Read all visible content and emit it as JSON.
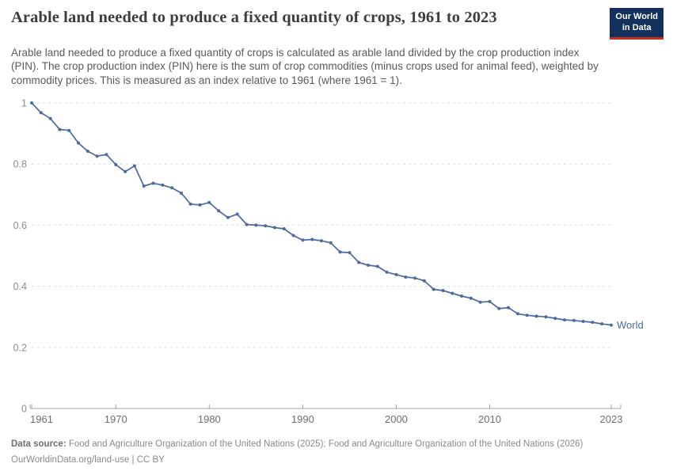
{
  "header": {
    "title": "Arable land needed to produce a fixed quantity of crops, 1961 to 2023",
    "subtitle": "Arable land needed to produce a fixed quantity of crops is calculated as arable land divided by the crop production index (PIN). The crop production index (PIN) here is the sum of crop commodities (minus crops used for animal feed), weighted by commodity prices. This is measured as an index relative to 1961 (where 1961 = 1).",
    "logo": {
      "line1": "Our World",
      "line2": "in Data",
      "bg_color": "#12315c",
      "accent_color": "#c5301f"
    }
  },
  "chart_data": {
    "type": "line",
    "title": "Arable land needed to produce a fixed quantity of crops, 1961 to 2023",
    "xlabel": "",
    "ylabel": "",
    "xlim": [
      1961,
      2023
    ],
    "ylim": [
      0,
      1
    ],
    "grid": "horizontal-dashed",
    "legend_position": "end-of-line-label",
    "line_color": "#4c6a9f",
    "tick_color": "#8c8c8c",
    "yticks": [
      0,
      0.2,
      0.4,
      0.6,
      0.8,
      1
    ],
    "ytick_labels": [
      "0",
      "0.2",
      "0.4",
      "0.6",
      "0.8",
      "1"
    ],
    "xticks": [
      1961,
      1970,
      1980,
      1990,
      2000,
      2010,
      2023
    ],
    "series": [
      {
        "name": "World",
        "x": [
          1961,
          1962,
          1963,
          1964,
          1965,
          1966,
          1967,
          1968,
          1969,
          1970,
          1971,
          1972,
          1973,
          1974,
          1975,
          1976,
          1977,
          1978,
          1979,
          1980,
          1981,
          1982,
          1983,
          1984,
          1985,
          1986,
          1987,
          1988,
          1989,
          1990,
          1991,
          1992,
          1993,
          1994,
          1995,
          1996,
          1997,
          1998,
          1999,
          2000,
          2001,
          2002,
          2003,
          2004,
          2005,
          2006,
          2007,
          2008,
          2009,
          2010,
          2011,
          2012,
          2013,
          2014,
          2015,
          2016,
          2017,
          2018,
          2019,
          2020,
          2021,
          2022,
          2023
        ],
        "values": [
          1.0,
          0.968,
          0.949,
          0.913,
          0.91,
          0.869,
          0.842,
          0.826,
          0.831,
          0.798,
          0.775,
          0.794,
          0.728,
          0.737,
          0.731,
          0.722,
          0.705,
          0.669,
          0.666,
          0.674,
          0.647,
          0.625,
          0.636,
          0.602,
          0.6,
          0.598,
          0.592,
          0.588,
          0.566,
          0.551,
          0.553,
          0.549,
          0.542,
          0.512,
          0.51,
          0.478,
          0.469,
          0.465,
          0.446,
          0.438,
          0.43,
          0.427,
          0.418,
          0.39,
          0.386,
          0.377,
          0.368,
          0.361,
          0.348,
          0.35,
          0.327,
          0.33,
          0.31,
          0.305,
          0.302,
          0.3,
          0.295,
          0.29,
          0.288,
          0.285,
          0.282,
          0.277,
          0.273
        ]
      }
    ]
  },
  "footer": {
    "datasource_label": "Data source:",
    "datasource_text": " Food and Agriculture Organization of the United Nations (2025); Food and Agriculture Organization of the United Nations (2026)",
    "license_line": "OurWorldinData.org/land-use | CC BY"
  }
}
